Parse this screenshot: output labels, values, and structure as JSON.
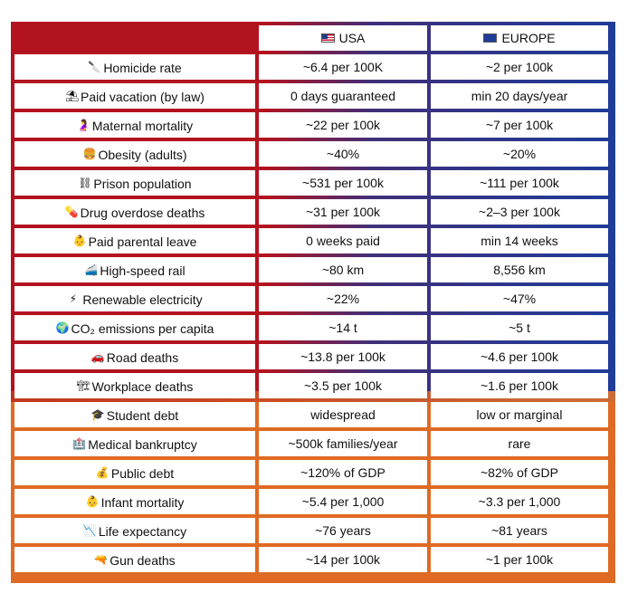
{
  "header": {
    "usa": "USA",
    "europe": "EUROPE"
  },
  "rows": [
    {
      "label": "Homicide rate",
      "icon": "knife-icon",
      "glyph": "🔪",
      "usa": "~6.4 per 100K",
      "europe": "~2 per 100k"
    },
    {
      "label": "Paid vacation (by law)",
      "icon": "beach-icon",
      "glyph": "⛱",
      "usa": "0 days guaranteed",
      "europe": "min 20 days/year"
    },
    {
      "label": "Maternal mortality",
      "icon": "pregnant-woman-icon",
      "glyph": "🤰",
      "usa": "~22 per 100k",
      "europe": "~7 per 100k"
    },
    {
      "label": "Obesity (adults)",
      "icon": "burger-icon",
      "glyph": "🍔",
      "usa": "~40%",
      "europe": "~20%"
    },
    {
      "label": "Prison population",
      "icon": "chains-icon",
      "glyph": "⛓",
      "usa": "~531 per 100k",
      "europe": "~111 per 100k"
    },
    {
      "label": "Drug overdose deaths",
      "icon": "pill-icon",
      "glyph": "💊",
      "usa": "~31 per 100k",
      "europe": "~2–3 per 100k"
    },
    {
      "label": "Paid parental leave",
      "icon": "baby-icon",
      "glyph": "👶",
      "usa": "0 weeks paid",
      "europe": "min 14 weeks"
    },
    {
      "label": "High-speed rail",
      "icon": "train-icon",
      "glyph": "🚄",
      "usa": "~80 km",
      "europe": "8,556 km"
    },
    {
      "label": "Renewable electricity",
      "icon": "lightning-icon",
      "glyph": "⚡",
      "usa": "~22%",
      "europe": "~47%"
    },
    {
      "label": "CO₂ emissions per capita",
      "icon": "globe-icon",
      "glyph": "🌍",
      "usa": "~14 t",
      "europe": "~5 t"
    },
    {
      "label": "Road deaths",
      "icon": "car-icon",
      "glyph": "🚗",
      "usa": "~13.8  per 100k",
      "europe": "~4.6 per 100k"
    },
    {
      "label": "Workplace deaths",
      "icon": "construction-icon",
      "glyph": "🏗",
      "usa": "~3.5 per 100k",
      "europe": "~1.6 per 100k"
    },
    {
      "label": "Student debt",
      "icon": "graduation-cap-icon",
      "glyph": "🎓",
      "usa": "widespread",
      "europe": "low or marginal"
    },
    {
      "label": "Medical bankruptcy",
      "icon": "hospital-icon",
      "glyph": "🏥",
      "usa": "~500k families/year",
      "europe": "rare"
    },
    {
      "label": "Public debt",
      "icon": "money-bag-icon",
      "glyph": "💰",
      "usa": "~120% of GDP",
      "europe": "~82% of GDP"
    },
    {
      "label": "Infant mortality",
      "icon": "baby-face-icon",
      "glyph": "👶",
      "usa": "~5.4 per 1,000",
      "europe": "~3.3 per 1,000"
    },
    {
      "label": "Life expectancy",
      "icon": "chart-down-icon",
      "glyph": "📉",
      "usa": "~76 years",
      "europe": "~81 years"
    },
    {
      "label": "Gun deaths",
      "icon": "pistol-icon",
      "glyph": "🔫",
      "usa": "~14 per 100k",
      "europe": "~1 per 100k"
    }
  ],
  "colors": {
    "usa_red": "#b3121f",
    "europe_blue": "#1f3c9a",
    "bottom_orange": "#df6a24"
  }
}
